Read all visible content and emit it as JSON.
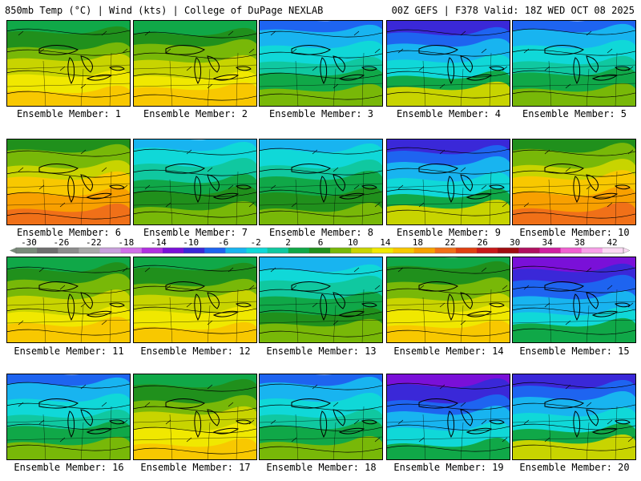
{
  "header": {
    "left": "850mb Temp (°C) | Wind (kts) | College of DuPage NEXLAB",
    "right": "00Z GEFS | F378 Valid: 18Z WED OCT 08 2025"
  },
  "colorbar": {
    "labels": [
      "-30",
      "-26",
      "-22",
      "-18",
      "-14",
      "-10",
      "-6",
      "-2",
      "2",
      "6",
      "10",
      "14",
      "18",
      "22",
      "26",
      "30",
      "34",
      "38",
      "42"
    ],
    "colors": [
      "#7a8a7a",
      "#6e6e6e",
      "#8c8c8c",
      "#a8a8a8",
      "#c8a0dc",
      "#d070e8",
      "#b030e0",
      "#7a10d8",
      "#3a28d8",
      "#1e64f0",
      "#18b4f0",
      "#10d8d8",
      "#10c8a0",
      "#10a848",
      "#20901c",
      "#78b808",
      "#c8d400",
      "#f0e800",
      "#f8c800",
      "#f8a000",
      "#f07018",
      "#e04010",
      "#c81818",
      "#a00c10",
      "#b01060",
      "#d020a0",
      "#f060d0",
      "#f8a0e8",
      "#fcd8f4"
    ]
  },
  "panels": [
    {
      "label": "Ensemble Member: 1",
      "theme": "warm"
    },
    {
      "label": "Ensemble Member: 2",
      "theme": "warm"
    },
    {
      "label": "Ensemble Member: 3",
      "theme": "cool"
    },
    {
      "label": "Ensemble Member: 4",
      "theme": "cold"
    },
    {
      "label": "Ensemble Member: 5",
      "theme": "cool"
    },
    {
      "label": "Ensemble Member: 6",
      "theme": "hot"
    },
    {
      "label": "Ensemble Member: 7",
      "theme": "mild"
    },
    {
      "label": "Ensemble Member: 8",
      "theme": "mild"
    },
    {
      "label": "Ensemble Member: 9",
      "theme": "cold"
    },
    {
      "label": "Ensemble Member: 10",
      "theme": "hot"
    },
    {
      "label": "Ensemble Member: 11",
      "theme": "warm"
    },
    {
      "label": "Ensemble Member: 12",
      "theme": "warm"
    },
    {
      "label": "Ensemble Member: 13",
      "theme": "mild"
    },
    {
      "label": "Ensemble Member: 14",
      "theme": "warm"
    },
    {
      "label": "Ensemble Member: 15",
      "theme": "coldest"
    },
    {
      "label": "Ensemble Member: 16",
      "theme": "cool"
    },
    {
      "label": "Ensemble Member: 17",
      "theme": "warm"
    },
    {
      "label": "Ensemble Member: 18",
      "theme": "cool"
    },
    {
      "label": "Ensemble Member: 19",
      "theme": "coldest"
    },
    {
      "label": "Ensemble Member: 20",
      "theme": "cold"
    }
  ]
}
